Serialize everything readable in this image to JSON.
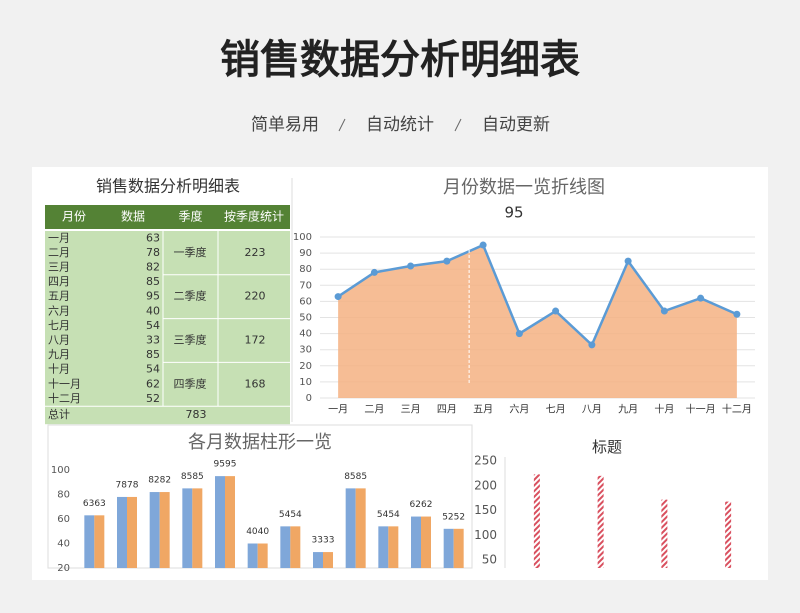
{
  "header": {
    "title": "销售数据分析明细表",
    "features": [
      "简单易用",
      "自动统计",
      "自动更新"
    ]
  },
  "table": {
    "title": "销售数据分析明细表",
    "headers": [
      "月份",
      "数据",
      "季度",
      "按季度统计"
    ],
    "rows": [
      [
        "一月",
        63
      ],
      [
        "二月",
        78
      ],
      [
        "三月",
        82
      ],
      [
        "四月",
        85
      ],
      [
        "五月",
        95
      ],
      [
        "六月",
        40
      ],
      [
        "七月",
        54
      ],
      [
        "八月",
        33
      ],
      [
        "九月",
        85
      ],
      [
        "十月",
        54
      ],
      [
        "十一月",
        62
      ],
      [
        "十二月",
        52
      ]
    ],
    "quarters": [
      {
        "name": "一季度",
        "total": 223
      },
      {
        "name": "二季度",
        "total": 220
      },
      {
        "name": "三季度",
        "total": 172
      },
      {
        "name": "四季度",
        "total": 168
      }
    ],
    "total_label": "总计",
    "total": 783
  },
  "chart_data": [
    {
      "type": "line",
      "title": "月份数据一览折线图",
      "annotation": "95",
      "categories": [
        "一月",
        "二月",
        "三月",
        "四月",
        "五月",
        "六月",
        "七月",
        "八月",
        "九月",
        "十月",
        "十一月",
        "十二月"
      ],
      "values": [
        63,
        78,
        82,
        85,
        95,
        40,
        54,
        33,
        85,
        54,
        62,
        52
      ],
      "color": "#5b9bd5",
      "area_color": "#f4b183",
      "ylim": [
        0,
        100
      ],
      "yticks": [
        0,
        10,
        20,
        30,
        40,
        50,
        60,
        70,
        80,
        90,
        100
      ],
      "grid": true
    },
    {
      "type": "bar",
      "title": "各月数据柱形一览",
      "series": [
        {
          "color": "#7fa7d9",
          "values": [
            63,
            78,
            82,
            85,
            95,
            40,
            54,
            33,
            85,
            54,
            62,
            52
          ]
        },
        {
          "color": "#f0a764",
          "values": [
            63,
            78,
            82,
            85,
            95,
            40,
            54,
            33,
            85,
            54,
            62,
            52
          ]
        }
      ],
      "ylim": [
        20,
        100
      ],
      "yticks": [
        20,
        40,
        60,
        80,
        100
      ],
      "grid": false
    },
    {
      "type": "bar",
      "title": "标题",
      "values": [
        223,
        220,
        172,
        168
      ],
      "color": "#d9505f",
      "ylim": [
        50,
        250
      ],
      "yticks": [
        50,
        100,
        150,
        200,
        250
      ],
      "grid": false
    }
  ]
}
